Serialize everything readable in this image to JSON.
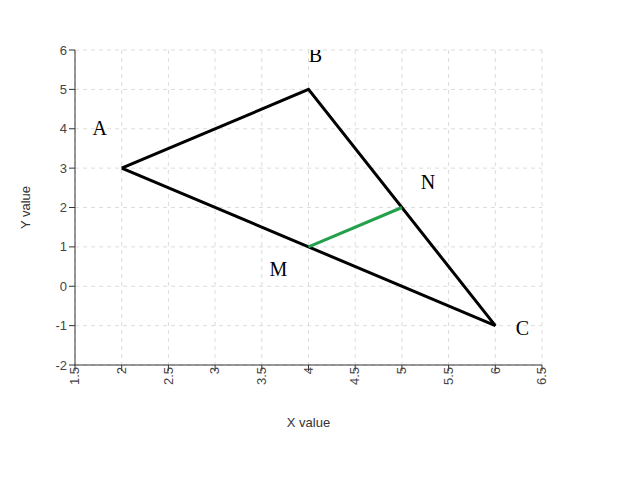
{
  "chart_data": {
    "type": "line",
    "x_label": "X value",
    "y_label": "Y value",
    "xlim": [
      1.5,
      6.5
    ],
    "xticks": [
      1.5,
      2,
      2.5,
      3,
      3.5,
      4,
      4.5,
      5,
      5.5,
      6,
      6.5
    ],
    "ylim": [
      -2,
      6
    ],
    "yticks": [
      -2,
      -1,
      0,
      1,
      2,
      3,
      4,
      5,
      6
    ],
    "grid": true,
    "series": [
      {
        "color": "#000000",
        "x": [
          2,
          4,
          6,
          2
        ],
        "values": [
          3,
          5,
          -1,
          3
        ]
      },
      {
        "color": "#22a04b",
        "x": [
          4,
          5
        ],
        "values": [
          1,
          2
        ]
      }
    ],
    "annotations": [
      {
        "text": "A",
        "x": 2,
        "y": 3
      },
      {
        "text": "B",
        "x": 4,
        "y": 5
      },
      {
        "text": "C",
        "x": 6,
        "y": -1
      },
      {
        "text": "M",
        "x": 4,
        "y": 1
      },
      {
        "text": "N",
        "x": 5,
        "y": 2
      }
    ]
  }
}
